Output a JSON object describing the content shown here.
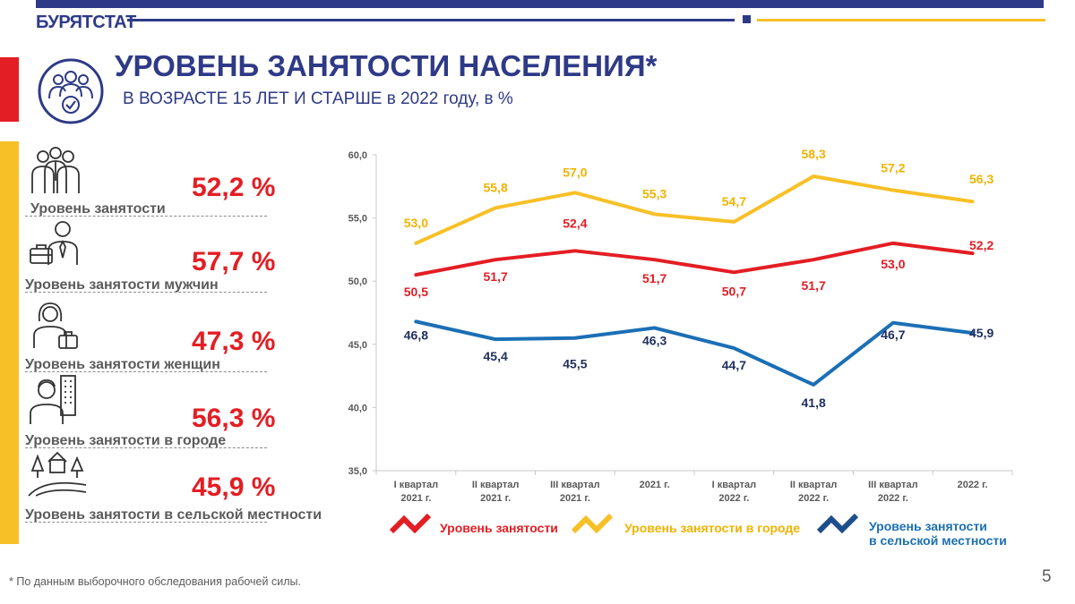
{
  "header": {
    "logo": "БУРЯТСТАТ"
  },
  "title": "УРОВЕНЬ ЗАНЯТОСТИ НАСЕЛЕНИЯ*",
  "subtitle": "В ВОЗРАСТЕ 15 ЛЕТ И СТАРШЕ в 2022 году, в %",
  "metrics": [
    {
      "value": "52,2 %",
      "label": "Уровень занятости",
      "icon": "group-people-icon"
    },
    {
      "value": "57,7 %",
      "label": "Уровень занятости мужчин",
      "icon": "man-with-briefcase-icon"
    },
    {
      "value": "47,3 %",
      "label": "Уровень занятости женщин",
      "icon": "woman-with-briefcase-icon"
    },
    {
      "value": "56,3 %",
      "label": "Уровень занятости в городе",
      "icon": "person-with-building-icon"
    },
    {
      "value": "45,9 %",
      "label": "Уровень занятости в сельской местности",
      "icon": "rural-landscape-icon"
    }
  ],
  "chart_data": {
    "type": "line",
    "categories": [
      [
        "I квартал",
        "2021 г."
      ],
      [
        "II квартал",
        "2021 г."
      ],
      [
        "III квартал",
        "2021 г."
      ],
      [
        "2021 г."
      ],
      [
        "I квартал",
        "2022 г."
      ],
      [
        "II квартал",
        "2022 г."
      ],
      [
        "III квартал",
        "2022 г."
      ],
      [
        "2022 г."
      ]
    ],
    "ylim": [
      35,
      60
    ],
    "yticks": [
      "35,0",
      "40,0",
      "45,0",
      "50,0",
      "55,0",
      "60,0"
    ],
    "grid": false,
    "legend_position": "bottom",
    "series": [
      {
        "name": "Уровень занятости",
        "color": "#e31e24",
        "label_color": "#e31e24",
        "values": [
          50.5,
          51.7,
          52.4,
          51.7,
          50.7,
          51.7,
          53.0,
          52.2
        ],
        "labels": [
          "50,5",
          "51,7",
          "52,4",
          "51,7",
          "50,7",
          "51,7",
          "53,0",
          "52,2"
        ]
      },
      {
        "name": "Уровень занятости в городе",
        "color": "#f8c027",
        "label_color": "#f2b300",
        "values": [
          53.0,
          55.8,
          57.0,
          55.3,
          54.7,
          58.3,
          57.2,
          56.3
        ],
        "labels": [
          "53,0",
          "55,8",
          "57,0",
          "55,3",
          "54,7",
          "58,3",
          "57,2",
          "56,3"
        ]
      },
      {
        "name": "Уровень занятости в сельской местности",
        "color": "#1b6fb5",
        "label_color": "#1f2f5e",
        "values": [
          46.8,
          45.4,
          45.5,
          46.3,
          44.7,
          41.8,
          46.7,
          45.9
        ],
        "labels": [
          "46,8",
          "45,4",
          "45,5",
          "46,3",
          "44,7",
          "41,8",
          "46,7",
          "45,9"
        ]
      }
    ]
  },
  "legend": [
    {
      "label_lines": [
        "Уровень занятости"
      ],
      "color": "#e31e24",
      "text_color": "#e31e24",
      "icon": "zigzag-red-icon"
    },
    {
      "label_lines": [
        "Уровень занятости в городе"
      ],
      "color": "#f8c027",
      "text_color": "#f2b300",
      "icon": "zigzag-yellow-icon"
    },
    {
      "label_lines": [
        "Уровень занятости",
        "в сельской местности"
      ],
      "color": "#1b6fb5",
      "text_color": "#1b6fb5",
      "icon": "zigzag-blue-icon"
    }
  ],
  "footnote": "* По данным выборочного обследования рабочей силы.",
  "page_number": "5"
}
